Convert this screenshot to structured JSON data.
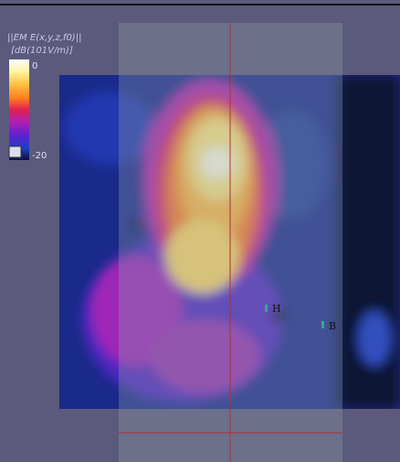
{
  "legend": {
    "title": "||EM E(x,y,z,f0)||",
    "unit": "[dB(101V/m)]",
    "max_label": "0",
    "min_label": "-20"
  },
  "markers": [
    {
      "label": "H"
    },
    {
      "label": "B"
    }
  ]
}
